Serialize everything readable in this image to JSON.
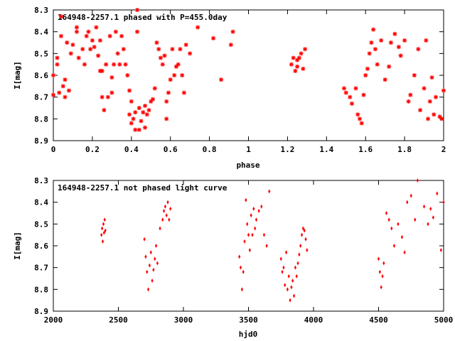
{
  "chart_data": [
    {
      "type": "scatter",
      "title": "164948-2257.1 phased with P=455.0day",
      "xlabel": "phase",
      "ylabel": "I[mag]",
      "xlim": [
        0,
        2
      ],
      "ylim": [
        8.3,
        8.9
      ],
      "y_inverted": true,
      "xticks": [
        "0",
        "0.2",
        "0.4",
        "0.6",
        "0.8",
        "1",
        "1.2",
        "1.4",
        "1.6",
        "1.8",
        "2"
      ],
      "yticks": [
        "8.3",
        "8.4",
        "8.5",
        "8.6",
        "8.7",
        "8.8",
        "8.9"
      ],
      "marker": "star",
      "color": "#ff0000",
      "grid": false,
      "x": [
        0.0,
        0.0,
        0.02,
        0.02,
        0.03,
        0.04,
        0.04,
        0.05,
        0.06,
        0.06,
        0.07,
        0.08,
        0.09,
        0.1,
        0.12,
        0.12,
        0.13,
        0.15,
        0.16,
        0.17,
        0.18,
        0.19,
        0.2,
        0.21,
        0.22,
        0.23,
        0.24,
        0.24,
        0.25,
        0.25,
        0.26,
        0.27,
        0.28,
        0.29,
        0.3,
        0.3,
        0.31,
        0.32,
        0.33,
        0.34,
        0.35,
        0.36,
        0.37,
        0.38,
        0.39,
        0.39,
        0.4,
        0.4,
        0.41,
        0.42,
        0.42,
        0.43,
        0.43,
        0.44,
        0.44,
        0.45,
        0.46,
        0.47,
        0.47,
        0.48,
        0.49,
        0.5,
        0.51,
        0.52,
        0.53,
        0.54,
        0.55,
        0.56,
        0.57,
        0.58,
        0.58,
        0.59,
        0.6,
        0.61,
        0.62,
        0.63,
        0.64,
        0.65,
        0.66,
        0.67,
        0.68,
        0.7,
        0.74,
        0.82,
        0.86,
        0.91,
        0.92,
        1.22,
        1.23,
        1.24,
        1.25,
        1.25,
        1.26,
        1.27,
        1.28,
        1.29,
        1.49,
        1.5,
        1.52,
        1.53,
        1.55,
        1.56,
        1.57,
        1.58,
        1.59,
        1.6,
        1.61,
        1.62,
        1.63,
        1.64,
        1.65,
        1.66,
        1.68,
        1.7,
        1.72,
        1.73,
        1.75,
        1.77,
        1.78,
        1.8,
        1.82,
        1.83,
        1.85,
        1.87,
        1.88,
        1.9,
        1.91,
        1.92,
        1.93,
        1.94,
        1.95,
        1.96,
        1.98,
        1.99,
        2.0
      ],
      "y": [
        8.6,
        8.69,
        8.55,
        8.52,
        8.68,
        8.33,
        8.42,
        8.65,
        8.7,
        8.62,
        8.45,
        8.67,
        8.5,
        8.46,
        8.4,
        8.38,
        8.52,
        8.48,
        8.55,
        8.42,
        8.4,
        8.48,
        8.44,
        8.47,
        8.38,
        8.51,
        8.58,
        8.44,
        8.7,
        8.58,
        8.76,
        8.55,
        8.7,
        8.42,
        8.61,
        8.68,
        8.55,
        8.4,
        8.5,
        8.55,
        8.42,
        8.48,
        8.55,
        8.6,
        8.67,
        8.78,
        8.82,
        8.72,
        8.8,
        8.85,
        8.77,
        8.3,
        8.4,
        8.75,
        8.85,
        8.81,
        8.77,
        8.74,
        8.84,
        8.78,
        8.76,
        8.72,
        8.71,
        8.66,
        8.45,
        8.48,
        8.52,
        8.55,
        8.51,
        8.8,
        8.72,
        8.68,
        8.62,
        8.48,
        8.6,
        8.56,
        8.55,
        8.48,
        8.6,
        8.68,
        8.46,
        8.5,
        8.38,
        8.43,
        8.62,
        8.46,
        8.4,
        8.55,
        8.52,
        8.58,
        8.56,
        8.53,
        8.52,
        8.5,
        8.57,
        8.48,
        8.66,
        8.68,
        8.7,
        8.73,
        8.66,
        8.78,
        8.8,
        8.82,
        8.69,
        8.6,
        8.57,
        8.5,
        8.45,
        8.39,
        8.48,
        8.55,
        8.44,
        8.62,
        8.56,
        8.45,
        8.41,
        8.47,
        8.51,
        8.44,
        8.72,
        8.69,
        8.6,
        8.48,
        8.76,
        8.66,
        8.44,
        8.8,
        8.72,
        8.61,
        8.78,
        8.7,
        8.79,
        8.8,
        8.67
      ]
    },
    {
      "type": "scatter",
      "title": "164948-2257.1 not phased light curve",
      "xlabel": "hjd0",
      "ylabel": "I[mag]",
      "xlim": [
        2000,
        5000
      ],
      "ylim": [
        8.3,
        8.9
      ],
      "y_inverted": true,
      "xticks": [
        "2000",
        "2500",
        "3000",
        "3500",
        "4000",
        "4500",
        "5000"
      ],
      "yticks": [
        "8.3",
        "8.4",
        "8.5",
        "8.6",
        "8.7",
        "8.8",
        "8.9"
      ],
      "marker": "diamond",
      "color": "#ff0000",
      "grid": false,
      "x": [
        2370,
        2375,
        2380,
        2385,
        2390,
        2395,
        2400,
        2700,
        2710,
        2720,
        2730,
        2740,
        2750,
        2760,
        2770,
        2780,
        2790,
        2800,
        2820,
        2840,
        2850,
        2860,
        2870,
        2880,
        2890,
        2900,
        3430,
        3440,
        3450,
        3460,
        3470,
        3480,
        3490,
        3500,
        3510,
        3520,
        3530,
        3540,
        3550,
        3560,
        3580,
        3600,
        3620,
        3640,
        3660,
        3750,
        3760,
        3770,
        3780,
        3790,
        3800,
        3810,
        3820,
        3830,
        3840,
        3850,
        3860,
        3870,
        3880,
        3890,
        3900,
        3910,
        3920,
        3930,
        3940,
        3950,
        4500,
        4510,
        4520,
        4530,
        4540,
        4560,
        4580,
        4600,
        4620,
        4650,
        4680,
        4700,
        4720,
        4750,
        4780,
        4800,
        4850,
        4880,
        4900,
        4920,
        4950,
        4980,
        5000
      ],
      "y": [
        8.55,
        8.52,
        8.58,
        8.5,
        8.54,
        8.48,
        8.53,
        8.57,
        8.65,
        8.72,
        8.8,
        8.69,
        8.63,
        8.76,
        8.71,
        8.66,
        8.6,
        8.68,
        8.52,
        8.48,
        8.44,
        8.42,
        8.46,
        8.4,
        8.48,
        8.43,
        8.65,
        8.7,
        8.8,
        8.72,
        8.58,
        8.39,
        8.5,
        8.55,
        8.62,
        8.46,
        8.55,
        8.43,
        8.52,
        8.48,
        8.44,
        8.42,
        8.55,
        8.6,
        8.35,
        8.66,
        8.72,
        8.7,
        8.78,
        8.63,
        8.8,
        8.74,
        8.85,
        8.79,
        8.76,
        8.83,
        8.7,
        8.74,
        8.68,
        8.64,
        8.6,
        8.55,
        8.52,
        8.53,
        8.57,
        8.62,
        8.66,
        8.72,
        8.79,
        8.74,
        8.68,
        8.45,
        8.48,
        8.52,
        8.6,
        8.5,
        8.56,
        8.63,
        8.4,
        8.37,
        8.48,
        8.3,
        8.42,
        8.5,
        8.43,
        8.47,
        8.36,
        8.62,
        8.4
      ]
    }
  ]
}
